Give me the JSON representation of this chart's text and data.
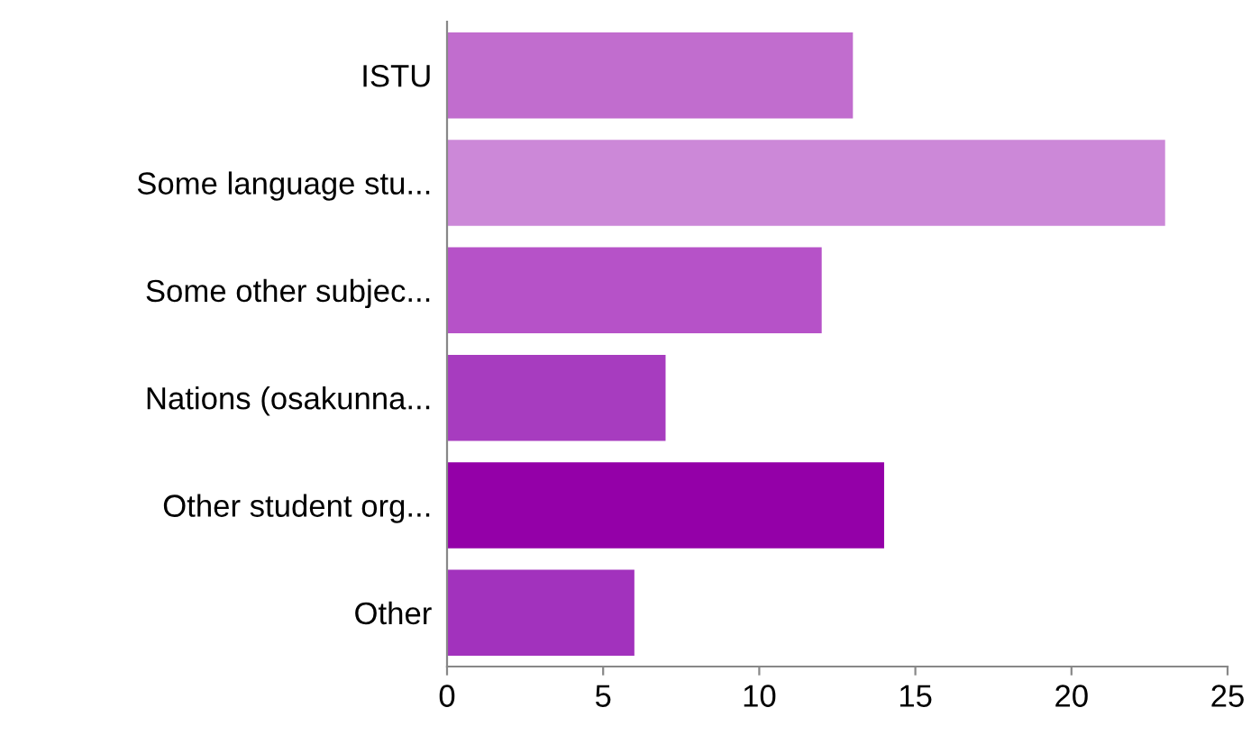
{
  "chart_data": {
    "type": "bar",
    "orientation": "horizontal",
    "categories": [
      "ISTU",
      "Some language stu...",
      "Some other subjec...",
      "Nations (osakunna...",
      "Other student org...",
      "Other"
    ],
    "values": [
      13,
      23,
      12,
      7,
      14,
      6
    ],
    "colors": [
      "#c16dce",
      "#cc88d8",
      "#b652c8",
      "#a73cbf",
      "#9400a8",
      "#a232bd"
    ],
    "xlim": [
      0,
      25
    ],
    "xticks": [
      0,
      5,
      10,
      15,
      20,
      25
    ],
    "grid": false
  }
}
